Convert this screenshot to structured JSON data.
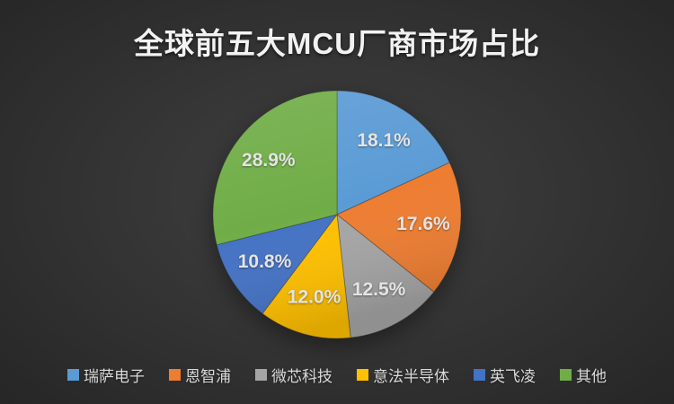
{
  "title": "全球前五大MCU厂商市场占比",
  "colors": {
    "title_text": "#f2f2f2",
    "slice_label_text": "#e4e4e4",
    "legend_text": "#d9d9d9"
  },
  "chart_data": {
    "type": "pie",
    "title": "全球前五大MCU厂商市场占比",
    "start_angle_deg": 0,
    "direction": "clockwise",
    "legend_position": "bottom",
    "data_labels": "percent",
    "slices": [
      {
        "label": "瑞萨电子",
        "value": 18.1,
        "display": "18.1%",
        "color": "#5B9BD5"
      },
      {
        "label": "恩智浦",
        "value": 17.6,
        "display": "17.6%",
        "color": "#ED7D31"
      },
      {
        "label": "微芯科技",
        "value": 12.5,
        "display": "12.5%",
        "color": "#A5A5A5"
      },
      {
        "label": "意法半导体",
        "value": 12.0,
        "display": "12.0%",
        "color": "#FFC000"
      },
      {
        "label": "英飞凌",
        "value": 10.8,
        "display": "10.8%",
        "color": "#4472C4"
      },
      {
        "label": "其他",
        "value": 28.9,
        "display": "28.9%",
        "color": "#70AD47"
      }
    ]
  }
}
